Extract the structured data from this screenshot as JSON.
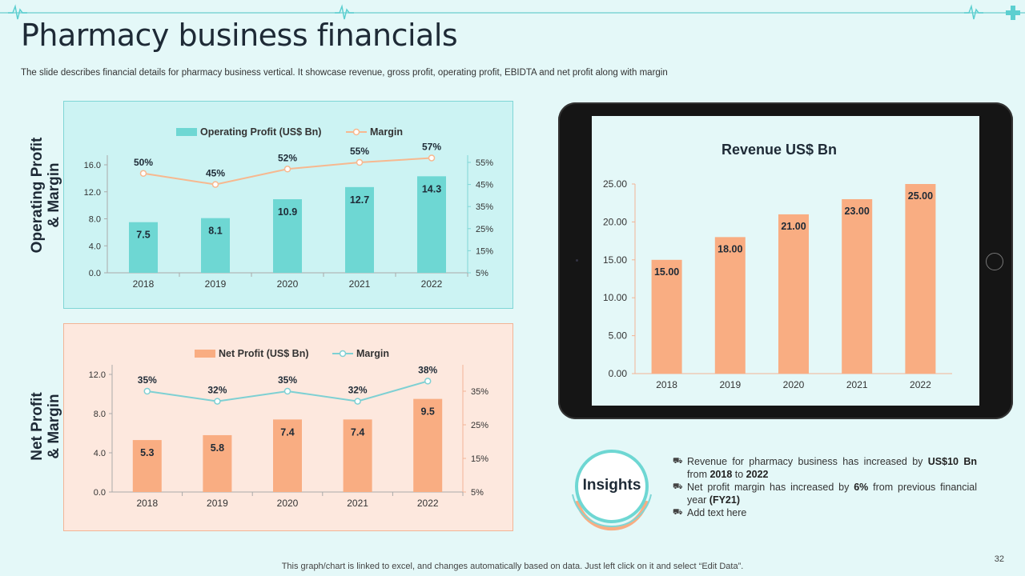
{
  "title": "Pharmacy business financials",
  "subtitle": "The slide describes financial details for pharmacy business vertical. It showcase revenue, gross profit, operating profit, EBIDTA  and net profit along with margin",
  "labels": {
    "op_side": "Operating Profit\n& Margin",
    "np_side": "Net Profit\n& Margin",
    "insights": "Insights"
  },
  "insights": {
    "item1_a": "Revenue  for pharmacy business has increased by ",
    "item1_b": "US$10 Bn",
    "item1_c": " from ",
    "item1_d": "2018",
    "item1_e": " to ",
    "item1_f": "2022",
    "item2_a": "Net profit margin has increased by ",
    "item2_b": "6%",
    "item2_c": " from previous financial year ",
    "item2_d": "(FY21)",
    "item3": "Add text here"
  },
  "footer": "This graph/chart is linked to excel,  and changes automatically based on data. Just left click on it and select “Edit Data”.",
  "page_number": "32",
  "colors": {
    "teal_bar": "#6ed7d3",
    "peach_line": "#f7b88f",
    "peach_bar": "#f9ad82",
    "teal_line": "#7ed0d3",
    "accent": "#5ccfd0"
  },
  "chart_data": [
    {
      "type": "bar",
      "title": "",
      "categories": [
        "2018",
        "2019",
        "2020",
        "2021",
        "2022"
      ],
      "series": [
        {
          "name": "Operating Profit (US$ Bn)",
          "kind": "bar",
          "axis": "left",
          "values": [
            7.5,
            8.1,
            10.9,
            12.7,
            14.3
          ],
          "labels": [
            "7.5",
            "8.1",
            "10.9",
            "12.7",
            "14.3"
          ]
        },
        {
          "name": "Margin",
          "kind": "line",
          "axis": "right",
          "values": [
            50,
            45,
            52,
            55,
            57
          ],
          "labels": [
            "50%",
            "45%",
            "52%",
            "55%",
            "57%"
          ]
        }
      ],
      "ylim": [
        0,
        16
      ],
      "yticks": [
        "0.0",
        "4.0",
        "8.0",
        "12.0",
        "16.0"
      ],
      "y2lim": [
        5,
        55
      ],
      "y2ticks": [
        "5%",
        "15%",
        "25%",
        "35%",
        "45%",
        "55%"
      ],
      "legend": "top"
    },
    {
      "type": "bar",
      "title": "",
      "categories": [
        "2018",
        "2019",
        "2020",
        "2021",
        "2022"
      ],
      "series": [
        {
          "name": "Net Profit (US$ Bn)",
          "kind": "bar",
          "axis": "left",
          "values": [
            5.3,
            5.8,
            7.4,
            7.4,
            9.5
          ],
          "labels": [
            "5.3",
            "5.8",
            "7.4",
            "7.4",
            "9.5"
          ]
        },
        {
          "name": "Margin",
          "kind": "line",
          "axis": "right",
          "values": [
            35,
            32,
            35,
            32,
            38
          ],
          "labels": [
            "35%",
            "32%",
            "35%",
            "32%",
            "38%"
          ]
        }
      ],
      "ylim": [
        0,
        12
      ],
      "yticks": [
        "0.0",
        "4.0",
        "8.0",
        "12.0"
      ],
      "y2lim": [
        5,
        35
      ],
      "y2ticks": [
        "5%",
        "15%",
        "25%",
        "35%"
      ],
      "legend": "top"
    },
    {
      "type": "bar",
      "title": "Revenue US$ Bn",
      "categories": [
        "2018",
        "2019",
        "2020",
        "2021",
        "2022"
      ],
      "series": [
        {
          "name": "Revenue",
          "kind": "bar",
          "axis": "left",
          "values": [
            15,
            18,
            21,
            23,
            25
          ],
          "labels": [
            "15.00",
            "18.00",
            "21.00",
            "23.00",
            "25.00"
          ]
        }
      ],
      "ylim": [
        0,
        25
      ],
      "yticks": [
        "0.00",
        "5.00",
        "10.00",
        "15.00",
        "20.00",
        "25.00"
      ]
    }
  ]
}
